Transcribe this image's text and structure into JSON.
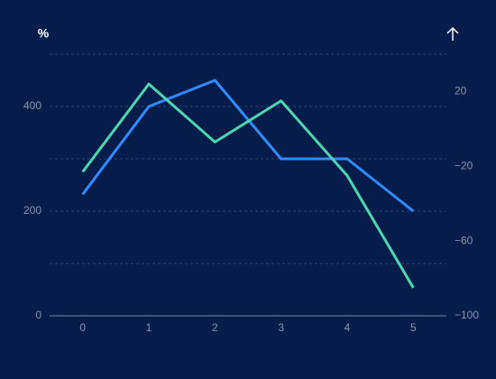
{
  "chart_data": {
    "type": "line",
    "ylabel": "%",
    "x": [
      0,
      1,
      2,
      3,
      4,
      5
    ],
    "xlim": [
      -0.5,
      5.5
    ],
    "xticks": [
      0,
      1,
      2,
      3,
      4,
      5
    ],
    "ylim": [
      0,
      500
    ],
    "yticks": [
      0,
      200,
      400
    ],
    "y2lim": [
      -100,
      40
    ],
    "y2ticks": [
      {
        "value": -100,
        "label": "−100"
      },
      {
        "value": -60,
        "label": "−60"
      },
      {
        "value": -20,
        "label": "−20"
      },
      20
    ],
    "grid": true,
    "series": [
      {
        "color": "#2f8cff",
        "values": [
          232,
          400,
          450,
          300,
          300,
          200
        ]
      },
      {
        "color": "#4fd6b0",
        "axis": "y2",
        "values": [
          -23,
          24,
          -7,
          15,
          -25,
          -85
        ]
      }
    ]
  }
}
